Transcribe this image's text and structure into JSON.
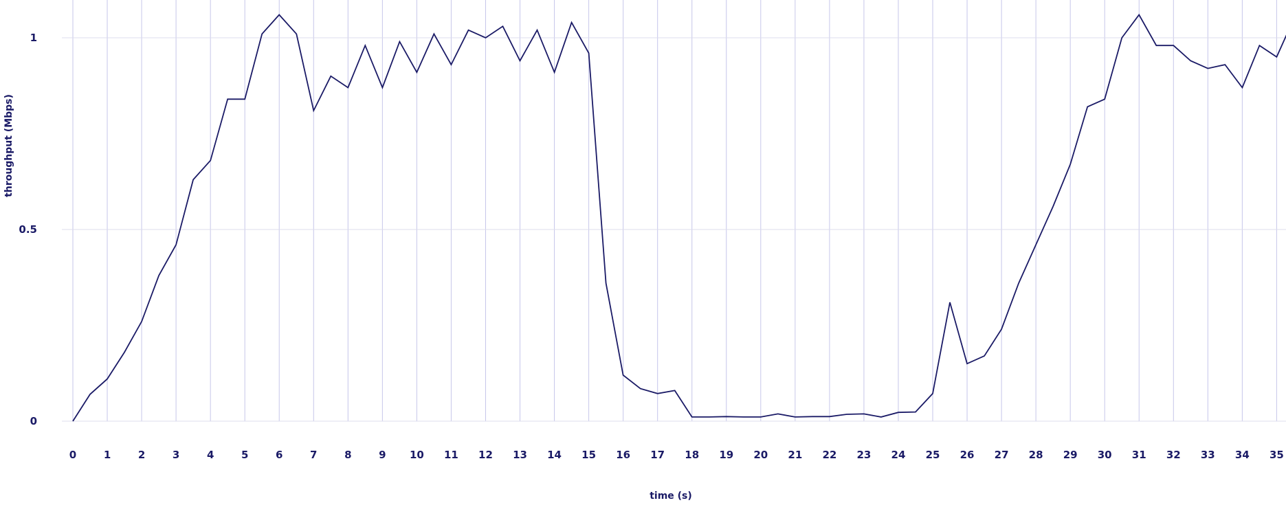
{
  "chart_data": {
    "type": "line",
    "title": "",
    "xlabel": "time (s)",
    "ylabel": "throughput (Mbps)",
    "xlim": [
      0,
      35
    ],
    "ylim": [
      0,
      1.05
    ],
    "x_ticks": [
      0,
      1,
      2,
      3,
      4,
      5,
      6,
      7,
      8,
      9,
      10,
      11,
      12,
      13,
      14,
      15,
      16,
      17,
      18,
      19,
      20,
      21,
      22,
      23,
      24,
      25,
      26,
      27,
      28,
      29,
      30,
      31,
      32,
      33,
      34,
      35
    ],
    "y_ticks": [
      0,
      0.5,
      1
    ],
    "y_tick_labels": [
      "0",
      "0.5",
      "1"
    ],
    "grid": {
      "vertical": true,
      "horizontal": true
    },
    "colors": {
      "line": "#1a1a66",
      "vgrid": "#c6c6ea",
      "hgrid": "#dcdcec",
      "text": "#1a1a66"
    },
    "series": [
      {
        "x": [
          0,
          0.5,
          1,
          1.5,
          2,
          2.5,
          3,
          3.5,
          4,
          4.5,
          5,
          5.5,
          6,
          6.5,
          7,
          7.5,
          8,
          8.5,
          9,
          9.5,
          10,
          10.5,
          11,
          11.5,
          12,
          12.5,
          13,
          13.5,
          14,
          14.5,
          15,
          15.5,
          16,
          16.5,
          17,
          17.5,
          18,
          18.5,
          19,
          19.5,
          20,
          20.5,
          21,
          21.5,
          22,
          22.5,
          23,
          23.5,
          24,
          24.5,
          25,
          25.5,
          26,
          26.5,
          27,
          27.5,
          28,
          28.5,
          29,
          29.5,
          30,
          30.5,
          31,
          31.5,
          32,
          32.5,
          33,
          33.5,
          34,
          34.5,
          35,
          35.3
        ],
        "values": [
          0,
          0.07,
          0.11,
          0.18,
          0.26,
          0.38,
          0.46,
          0.63,
          0.68,
          0.84,
          0.84,
          1.01,
          1.06,
          1.01,
          0.81,
          0.9,
          0.87,
          0.98,
          0.87,
          0.99,
          0.91,
          1.01,
          0.93,
          1.02,
          1.0,
          1.03,
          0.94,
          1.02,
          0.91,
          1.04,
          0.96,
          0.36,
          0.12,
          0.085,
          0.072,
          0.08,
          0.011,
          0.011,
          0.012,
          0.011,
          0.011,
          0.019,
          0.011,
          0.012,
          0.012,
          0.018,
          0.019,
          0.011,
          0.023,
          0.024,
          0.072,
          0.31,
          0.15,
          0.17,
          0.24,
          0.36,
          0.46,
          0.56,
          0.67,
          0.82,
          0.84,
          1.0,
          1.06,
          0.98,
          0.98,
          0.94,
          0.92,
          0.93,
          0.87,
          0.98,
          0.95,
          1.01
        ]
      }
    ]
  }
}
